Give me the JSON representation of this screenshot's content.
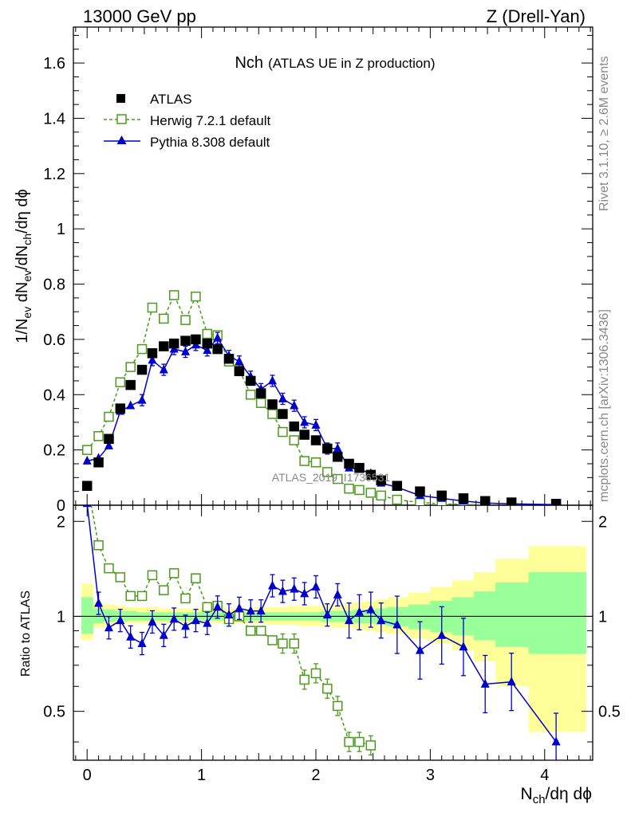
{
  "header": {
    "energy_label": "13000 GeV pp",
    "process_label": "Z (Drell-Yan)"
  },
  "chart_data": {
    "type": "line",
    "title_main": "Nch",
    "title_sub": "(ATLAS UE in Z production)",
    "xlabel": "N_ch/dη dϕ",
    "ylabel": "1/N_ev dN_ev/dN_ch/dη dϕ",
    "ratio_ylabel": "Ratio to ATLAS",
    "watermark": "ATLAS_2019_I1736531",
    "side_label_top": "Rivet 3.1.10, ≥ 2.6M events",
    "side_label_bottom": "mcplots.cern.ch [arXiv:1306.3436]",
    "xlim": [
      -0.12,
      4.42
    ],
    "ylim": [
      0,
      1.73
    ],
    "ratio_ylim": [
      0.35,
      2.25
    ],
    "grid": false,
    "legend_position": "top-left",
    "x_ticks": [
      "0",
      "1",
      "2",
      "3",
      "4"
    ],
    "y_ticks": [
      "0",
      "0.2",
      "0.4",
      "0.6",
      "0.8",
      "1",
      "1.2",
      "1.4",
      "1.6"
    ],
    "ratio_y_ticks": [
      "0.5",
      "1",
      "2"
    ],
    "series": [
      {
        "name": "ATLAS",
        "marker": "filled-square",
        "color": "#000000",
        "x": [
          0.0,
          0.1,
          0.19,
          0.29,
          0.38,
          0.48,
          0.57,
          0.67,
          0.76,
          0.86,
          0.95,
          1.05,
          1.14,
          1.24,
          1.33,
          1.43,
          1.52,
          1.62,
          1.71,
          1.81,
          1.9,
          2.0,
          2.1,
          2.19,
          2.29,
          2.38,
          2.48,
          2.57,
          2.71,
          2.91,
          3.1,
          3.29,
          3.48,
          3.71,
          4.1
        ],
        "y": [
          0.07,
          0.155,
          0.24,
          0.35,
          0.435,
          0.49,
          0.55,
          0.575,
          0.585,
          0.595,
          0.6,
          0.585,
          0.565,
          0.53,
          0.485,
          0.45,
          0.405,
          0.365,
          0.33,
          0.285,
          0.255,
          0.235,
          0.205,
          0.175,
          0.15,
          0.135,
          0.11,
          0.09,
          0.07,
          0.05,
          0.035,
          0.025,
          0.015,
          0.01,
          0.005
        ]
      },
      {
        "name": "Herwig 7.2.1 default",
        "marker": "open-square",
        "color": "#4b9a1c",
        "x": [
          0.0,
          0.1,
          0.19,
          0.29,
          0.38,
          0.48,
          0.57,
          0.67,
          0.76,
          0.86,
          0.95,
          1.05,
          1.14,
          1.24,
          1.33,
          1.43,
          1.52,
          1.62,
          1.71,
          1.81,
          1.9,
          2.0,
          2.1,
          2.19,
          2.29,
          2.38,
          2.48,
          2.57,
          2.71,
          2.91,
          3.1,
          3.29,
          3.48
        ],
        "y": [
          0.2,
          0.25,
          0.32,
          0.445,
          0.5,
          0.565,
          0.715,
          0.675,
          0.76,
          0.67,
          0.755,
          0.62,
          0.615,
          0.52,
          0.49,
          0.4,
          0.37,
          0.33,
          0.265,
          0.235,
          0.16,
          0.155,
          0.12,
          0.095,
          0.06,
          0.055,
          0.045,
          0.035,
          0.02,
          0.01,
          0.005,
          0.003,
          0.001
        ]
      },
      {
        "name": "Pythia 8.308 default",
        "marker": "filled-triangle",
        "color": "#0000cc",
        "x": [
          0.0,
          0.1,
          0.19,
          0.29,
          0.38,
          0.48,
          0.57,
          0.67,
          0.76,
          0.86,
          0.95,
          1.05,
          1.14,
          1.24,
          1.33,
          1.43,
          1.52,
          1.62,
          1.71,
          1.81,
          1.9,
          2.0,
          2.1,
          2.19,
          2.29,
          2.38,
          2.48,
          2.57,
          2.71,
          2.91,
          3.1,
          3.29,
          3.48,
          3.71,
          4.1
        ],
        "y": [
          0.16,
          0.17,
          0.215,
          0.34,
          0.36,
          0.38,
          0.525,
          0.49,
          0.565,
          0.555,
          0.58,
          0.56,
          0.605,
          0.54,
          0.52,
          0.465,
          0.42,
          0.45,
          0.385,
          0.36,
          0.3,
          0.29,
          0.205,
          0.205,
          0.135,
          0.13,
          0.115,
          0.08,
          0.065,
          0.035,
          0.025,
          0.015,
          0.008,
          0.005,
          0.002
        ]
      }
    ],
    "ratio": {
      "herwig": {
        "x": [
          0.0,
          0.1,
          0.19,
          0.29,
          0.38,
          0.48,
          0.57,
          0.67,
          0.76,
          0.86,
          0.95,
          1.05,
          1.14,
          1.24,
          1.33,
          1.43,
          1.52,
          1.62,
          1.71,
          1.81,
          1.9,
          2.0,
          2.1,
          2.19,
          2.29,
          2.38,
          2.48
        ],
        "y": [
          2.65,
          1.68,
          1.42,
          1.33,
          1.16,
          1.16,
          1.35,
          1.21,
          1.37,
          1.14,
          1.32,
          1.07,
          1.08,
          0.98,
          1.0,
          0.9,
          0.9,
          0.84,
          0.82,
          0.82,
          0.63,
          0.66,
          0.59,
          0.52,
          0.4,
          0.4,
          0.39
        ]
      },
      "pythia": {
        "x": [
          0.0,
          0.1,
          0.19,
          0.29,
          0.38,
          0.48,
          0.57,
          0.67,
          0.76,
          0.86,
          0.95,
          1.05,
          1.14,
          1.24,
          1.33,
          1.43,
          1.52,
          1.62,
          1.71,
          1.81,
          1.9,
          2.0,
          2.1,
          2.19,
          2.29,
          2.38,
          2.48,
          2.57,
          2.71,
          2.91,
          3.1,
          3.29,
          3.48,
          3.71,
          4.1
        ],
        "y": [
          2.28,
          1.1,
          0.92,
          0.97,
          0.86,
          0.82,
          0.96,
          0.87,
          0.98,
          0.93,
          0.97,
          0.95,
          1.07,
          1.01,
          1.06,
          1.04,
          1.04,
          1.25,
          1.2,
          1.22,
          1.18,
          1.24,
          1.01,
          1.17,
          0.97,
          1.03,
          1.05,
          0.97,
          0.94,
          0.78,
          0.87,
          0.8,
          0.61,
          0.62,
          0.4
        ]
      },
      "band_edges": [
        -0.05,
        0.05,
        0.14,
        0.24,
        0.33,
        0.43,
        0.52,
        0.62,
        0.71,
        0.81,
        0.9,
        1.0,
        1.09,
        1.19,
        1.28,
        1.38,
        1.47,
        1.57,
        1.66,
        1.76,
        1.85,
        1.95,
        2.05,
        2.14,
        2.24,
        2.33,
        2.43,
        2.52,
        2.62,
        2.81,
        3.0,
        3.19,
        3.38,
        3.57,
        3.86,
        4.36
      ],
      "band_inner_up": [
        1.15,
        1.06,
        1.05,
        1.04,
        1.04,
        1.03,
        1.03,
        1.03,
        1.03,
        1.03,
        1.03,
        1.03,
        1.03,
        1.03,
        1.03,
        1.03,
        1.03,
        1.03,
        1.03,
        1.03,
        1.03,
        1.03,
        1.04,
        1.04,
        1.04,
        1.05,
        1.05,
        1.06,
        1.07,
        1.09,
        1.12,
        1.15,
        1.2,
        1.28,
        1.38
      ],
      "band_inner_down": [
        0.88,
        0.95,
        0.96,
        0.97,
        0.97,
        0.97,
        0.97,
        0.97,
        0.97,
        0.97,
        0.97,
        0.97,
        0.97,
        0.97,
        0.97,
        0.97,
        0.97,
        0.97,
        0.97,
        0.97,
        0.97,
        0.97,
        0.96,
        0.96,
        0.96,
        0.95,
        0.95,
        0.94,
        0.93,
        0.91,
        0.89,
        0.87,
        0.84,
        0.8,
        0.76
      ],
      "band_outer_up": [
        1.27,
        1.11,
        1.09,
        1.08,
        1.07,
        1.07,
        1.07,
        1.06,
        1.06,
        1.06,
        1.06,
        1.06,
        1.06,
        1.06,
        1.06,
        1.06,
        1.07,
        1.07,
        1.07,
        1.08,
        1.08,
        1.08,
        1.09,
        1.09,
        1.1,
        1.11,
        1.12,
        1.13,
        1.15,
        1.19,
        1.24,
        1.3,
        1.38,
        1.52,
        1.67
      ],
      "band_outer_down": [
        0.84,
        0.92,
        0.93,
        0.94,
        0.95,
        0.95,
        0.95,
        0.95,
        0.95,
        0.95,
        0.95,
        0.95,
        0.95,
        0.95,
        0.95,
        0.95,
        0.95,
        0.94,
        0.94,
        0.94,
        0.93,
        0.93,
        0.93,
        0.92,
        0.92,
        0.91,
        0.9,
        0.89,
        0.88,
        0.85,
        0.82,
        0.78,
        0.72,
        0.6,
        0.43
      ]
    }
  }
}
